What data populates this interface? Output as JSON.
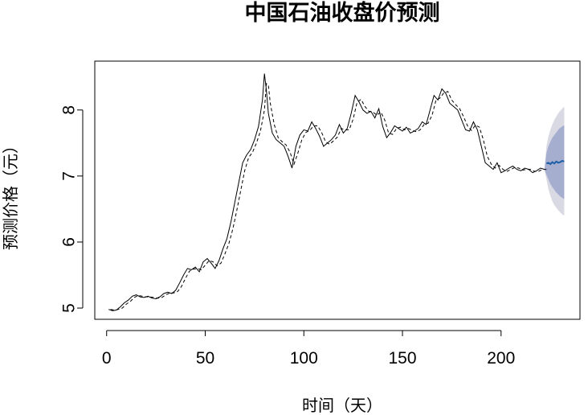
{
  "chart_data": {
    "type": "line",
    "title": "中国石油收盘价预测",
    "xlabel": "时间（天）",
    "ylabel": "预测价格（元）",
    "xlim": [
      -6,
      240
    ],
    "ylim": [
      4.83,
      8.74
    ],
    "x_ticks": [
      0,
      50,
      100,
      150,
      200
    ],
    "y_ticks": [
      5,
      6,
      7,
      8
    ],
    "grid": false,
    "legend": "none",
    "series": [
      {
        "role": "observed",
        "style": "solid",
        "color": "#000000",
        "x": [
          1,
          3,
          5,
          7,
          9,
          11,
          13,
          15,
          17,
          19,
          21,
          23,
          25,
          27,
          29,
          31,
          33,
          35,
          37,
          39,
          41,
          43,
          45,
          47,
          49,
          51,
          53,
          55,
          57,
          59,
          61,
          63,
          65,
          67,
          69,
          71,
          73,
          75,
          77,
          79,
          80,
          81,
          82,
          84,
          86,
          88,
          90,
          92,
          94,
          96,
          98,
          100,
          102,
          104,
          106,
          108,
          110,
          112,
          114,
          116,
          118,
          120,
          122,
          124,
          126,
          128,
          130,
          132,
          134,
          136,
          138,
          140,
          142,
          144,
          146,
          148,
          150,
          152,
          154,
          156,
          158,
          160,
          162,
          164,
          166,
          168,
          170,
          172,
          174,
          176,
          178,
          180,
          182,
          184,
          186,
          188,
          190,
          192,
          194,
          196,
          198,
          200,
          202,
          204,
          206,
          208,
          210,
          212,
          214,
          216,
          218,
          220,
          222
        ],
        "y": [
          4.98,
          4.96,
          4.97,
          5.02,
          5.08,
          5.12,
          5.18,
          5.2,
          5.17,
          5.16,
          5.18,
          5.15,
          5.14,
          5.17,
          5.22,
          5.24,
          5.22,
          5.27,
          5.38,
          5.5,
          5.6,
          5.58,
          5.62,
          5.55,
          5.7,
          5.75,
          5.68,
          5.6,
          5.72,
          5.9,
          6.05,
          6.3,
          6.6,
          6.9,
          7.2,
          7.32,
          7.4,
          7.55,
          7.75,
          8.15,
          8.55,
          8.3,
          7.95,
          7.65,
          7.55,
          7.5,
          7.45,
          7.3,
          7.12,
          7.45,
          7.62,
          7.7,
          7.68,
          7.82,
          7.72,
          7.6,
          7.45,
          7.5,
          7.55,
          7.62,
          7.78,
          7.65,
          7.72,
          7.95,
          8.22,
          8.12,
          8.0,
          7.95,
          7.98,
          7.88,
          8.02,
          7.75,
          7.58,
          7.66,
          7.76,
          7.72,
          7.68,
          7.74,
          7.65,
          7.68,
          7.72,
          7.82,
          7.78,
          8.0,
          8.22,
          8.15,
          8.32,
          8.25,
          8.1,
          8.05,
          8.0,
          7.85,
          7.7,
          7.68,
          7.82,
          7.7,
          7.45,
          7.2,
          7.15,
          7.1,
          7.2,
          7.05,
          7.08,
          7.12,
          7.15,
          7.1,
          7.08,
          7.12,
          7.1,
          7.05,
          7.08,
          7.12,
          7.1
        ]
      },
      {
        "role": "fitted",
        "style": "dashed",
        "color": "#000000",
        "x": [
          2,
          4,
          6,
          8,
          10,
          12,
          14,
          16,
          18,
          20,
          22,
          24,
          26,
          28,
          30,
          32,
          34,
          36,
          38,
          40,
          42,
          44,
          46,
          48,
          50,
          52,
          54,
          56,
          58,
          60,
          62,
          64,
          66,
          68,
          70,
          72,
          74,
          76,
          78,
          80,
          81,
          82,
          83,
          85,
          87,
          89,
          91,
          93,
          95,
          97,
          99,
          101,
          103,
          105,
          107,
          109,
          111,
          113,
          115,
          117,
          119,
          121,
          123,
          125,
          127,
          129,
          131,
          133,
          135,
          137,
          139,
          141,
          143,
          145,
          147,
          149,
          151,
          153,
          155,
          157,
          159,
          161,
          163,
          165,
          167,
          169,
          171,
          173,
          175,
          177,
          179,
          181,
          183,
          185,
          187,
          189,
          191,
          193,
          195,
          197,
          199,
          201,
          203,
          205,
          207,
          209,
          211,
          213,
          215,
          217,
          219,
          221,
          223
        ],
        "y": [
          4.98,
          4.97,
          4.98,
          5.0,
          5.06,
          5.1,
          5.16,
          5.19,
          5.18,
          5.17,
          5.17,
          5.16,
          5.15,
          5.16,
          5.2,
          5.23,
          5.23,
          5.25,
          5.33,
          5.45,
          5.56,
          5.59,
          5.6,
          5.58,
          5.65,
          5.72,
          5.7,
          5.64,
          5.68,
          5.82,
          5.98,
          6.2,
          6.48,
          6.78,
          7.08,
          7.28,
          7.36,
          7.5,
          7.68,
          8.0,
          8.4,
          8.38,
          8.1,
          7.78,
          7.58,
          7.52,
          7.47,
          7.36,
          7.18,
          7.35,
          7.55,
          7.66,
          7.69,
          7.76,
          7.76,
          7.66,
          7.52,
          7.48,
          7.53,
          7.59,
          7.72,
          7.7,
          7.7,
          7.86,
          8.12,
          8.16,
          8.05,
          7.98,
          7.97,
          7.92,
          7.97,
          7.85,
          7.65,
          7.63,
          7.72,
          7.74,
          7.7,
          7.72,
          7.69,
          7.67,
          7.7,
          7.78,
          7.8,
          7.92,
          8.15,
          8.18,
          8.26,
          8.28,
          8.15,
          8.08,
          8.02,
          7.9,
          7.76,
          7.69,
          7.77,
          7.74,
          7.55,
          7.3,
          7.18,
          7.12,
          7.16,
          7.1,
          7.07,
          7.1,
          7.13,
          7.12,
          7.09,
          7.1,
          7.1,
          7.07,
          7.07,
          7.1,
          7.1
        ]
      },
      {
        "role": "forecast",
        "style": "solid",
        "color": "#1f5fa8",
        "x": [
          223,
          224,
          225,
          226,
          227,
          228,
          229,
          230,
          231,
          232
        ],
        "y": [
          7.19,
          7.2,
          7.18,
          7.21,
          7.19,
          7.22,
          7.2,
          7.21,
          7.23,
          7.22
        ]
      }
    ],
    "forecast_intervals": {
      "x": [
        222,
        223,
        224,
        225,
        226,
        227,
        228,
        229,
        230,
        231,
        232
      ],
      "upper_95": [
        7.1,
        7.45,
        7.6,
        7.7,
        7.78,
        7.85,
        7.9,
        7.95,
        7.99,
        8.02,
        8.05
      ],
      "lower_95": [
        7.1,
        6.95,
        6.8,
        6.7,
        6.62,
        6.56,
        6.52,
        6.48,
        6.45,
        6.42,
        6.4
      ],
      "upper_80": [
        7.1,
        7.35,
        7.45,
        7.52,
        7.58,
        7.62,
        7.66,
        7.7,
        7.73,
        7.75,
        7.77
      ],
      "lower_80": [
        7.1,
        7.02,
        6.95,
        6.88,
        6.83,
        6.79,
        6.75,
        6.72,
        6.69,
        6.67,
        6.65
      ],
      "color_95": "#d9d9e4",
      "color_80": "#a6aed0"
    }
  }
}
